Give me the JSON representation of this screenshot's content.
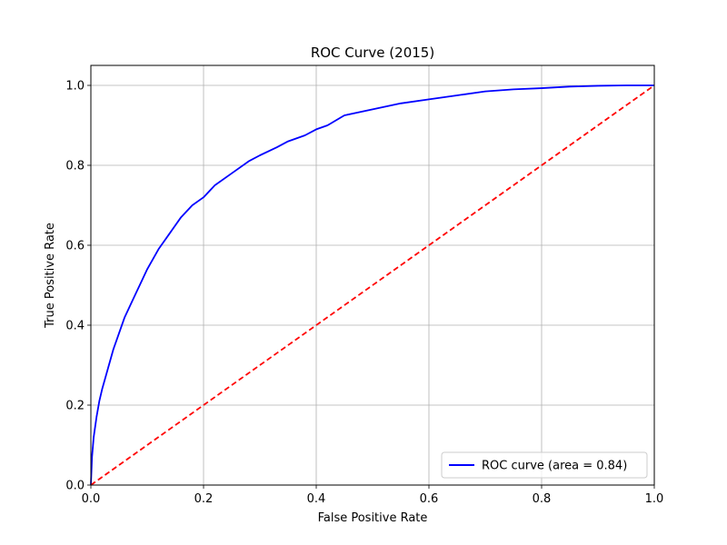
{
  "chart_data": {
    "type": "line",
    "title": "ROC Curve (2015)",
    "xlabel": "False Positive Rate",
    "ylabel": "True Positive Rate",
    "xlim": [
      0.0,
      1.0
    ],
    "ylim": [
      0.0,
      1.05
    ],
    "grid": true,
    "legend_position": "lower-right",
    "x_ticks": [
      "0.0",
      "0.2",
      "0.4",
      "0.6",
      "0.8",
      "1.0"
    ],
    "y_ticks": [
      "0.0",
      "0.2",
      "0.4",
      "0.6",
      "0.8",
      "1.0"
    ],
    "series": [
      {
        "name": "ROC curve (area = 0.84)",
        "color": "#0000ff",
        "style": "solid",
        "x": [
          0.0,
          0.002,
          0.005,
          0.01,
          0.015,
          0.02,
          0.03,
          0.04,
          0.05,
          0.06,
          0.07,
          0.08,
          0.09,
          0.1,
          0.12,
          0.14,
          0.16,
          0.18,
          0.2,
          0.22,
          0.25,
          0.28,
          0.3,
          0.33,
          0.35,
          0.38,
          0.4,
          0.42,
          0.45,
          0.5,
          0.55,
          0.6,
          0.65,
          0.7,
          0.75,
          0.8,
          0.85,
          0.9,
          0.95,
          1.0
        ],
        "y": [
          0.0,
          0.07,
          0.12,
          0.17,
          0.21,
          0.24,
          0.29,
          0.34,
          0.38,
          0.42,
          0.45,
          0.48,
          0.51,
          0.54,
          0.59,
          0.63,
          0.67,
          0.7,
          0.72,
          0.75,
          0.78,
          0.81,
          0.825,
          0.845,
          0.86,
          0.875,
          0.89,
          0.9,
          0.925,
          0.94,
          0.955,
          0.965,
          0.975,
          0.985,
          0.99,
          0.993,
          0.997,
          0.999,
          1.0,
          1.0
        ]
      },
      {
        "name": "",
        "color": "#ff0000",
        "style": "dashed",
        "x": [
          0.0,
          1.0
        ],
        "y": [
          0.0,
          1.0
        ]
      }
    ]
  }
}
